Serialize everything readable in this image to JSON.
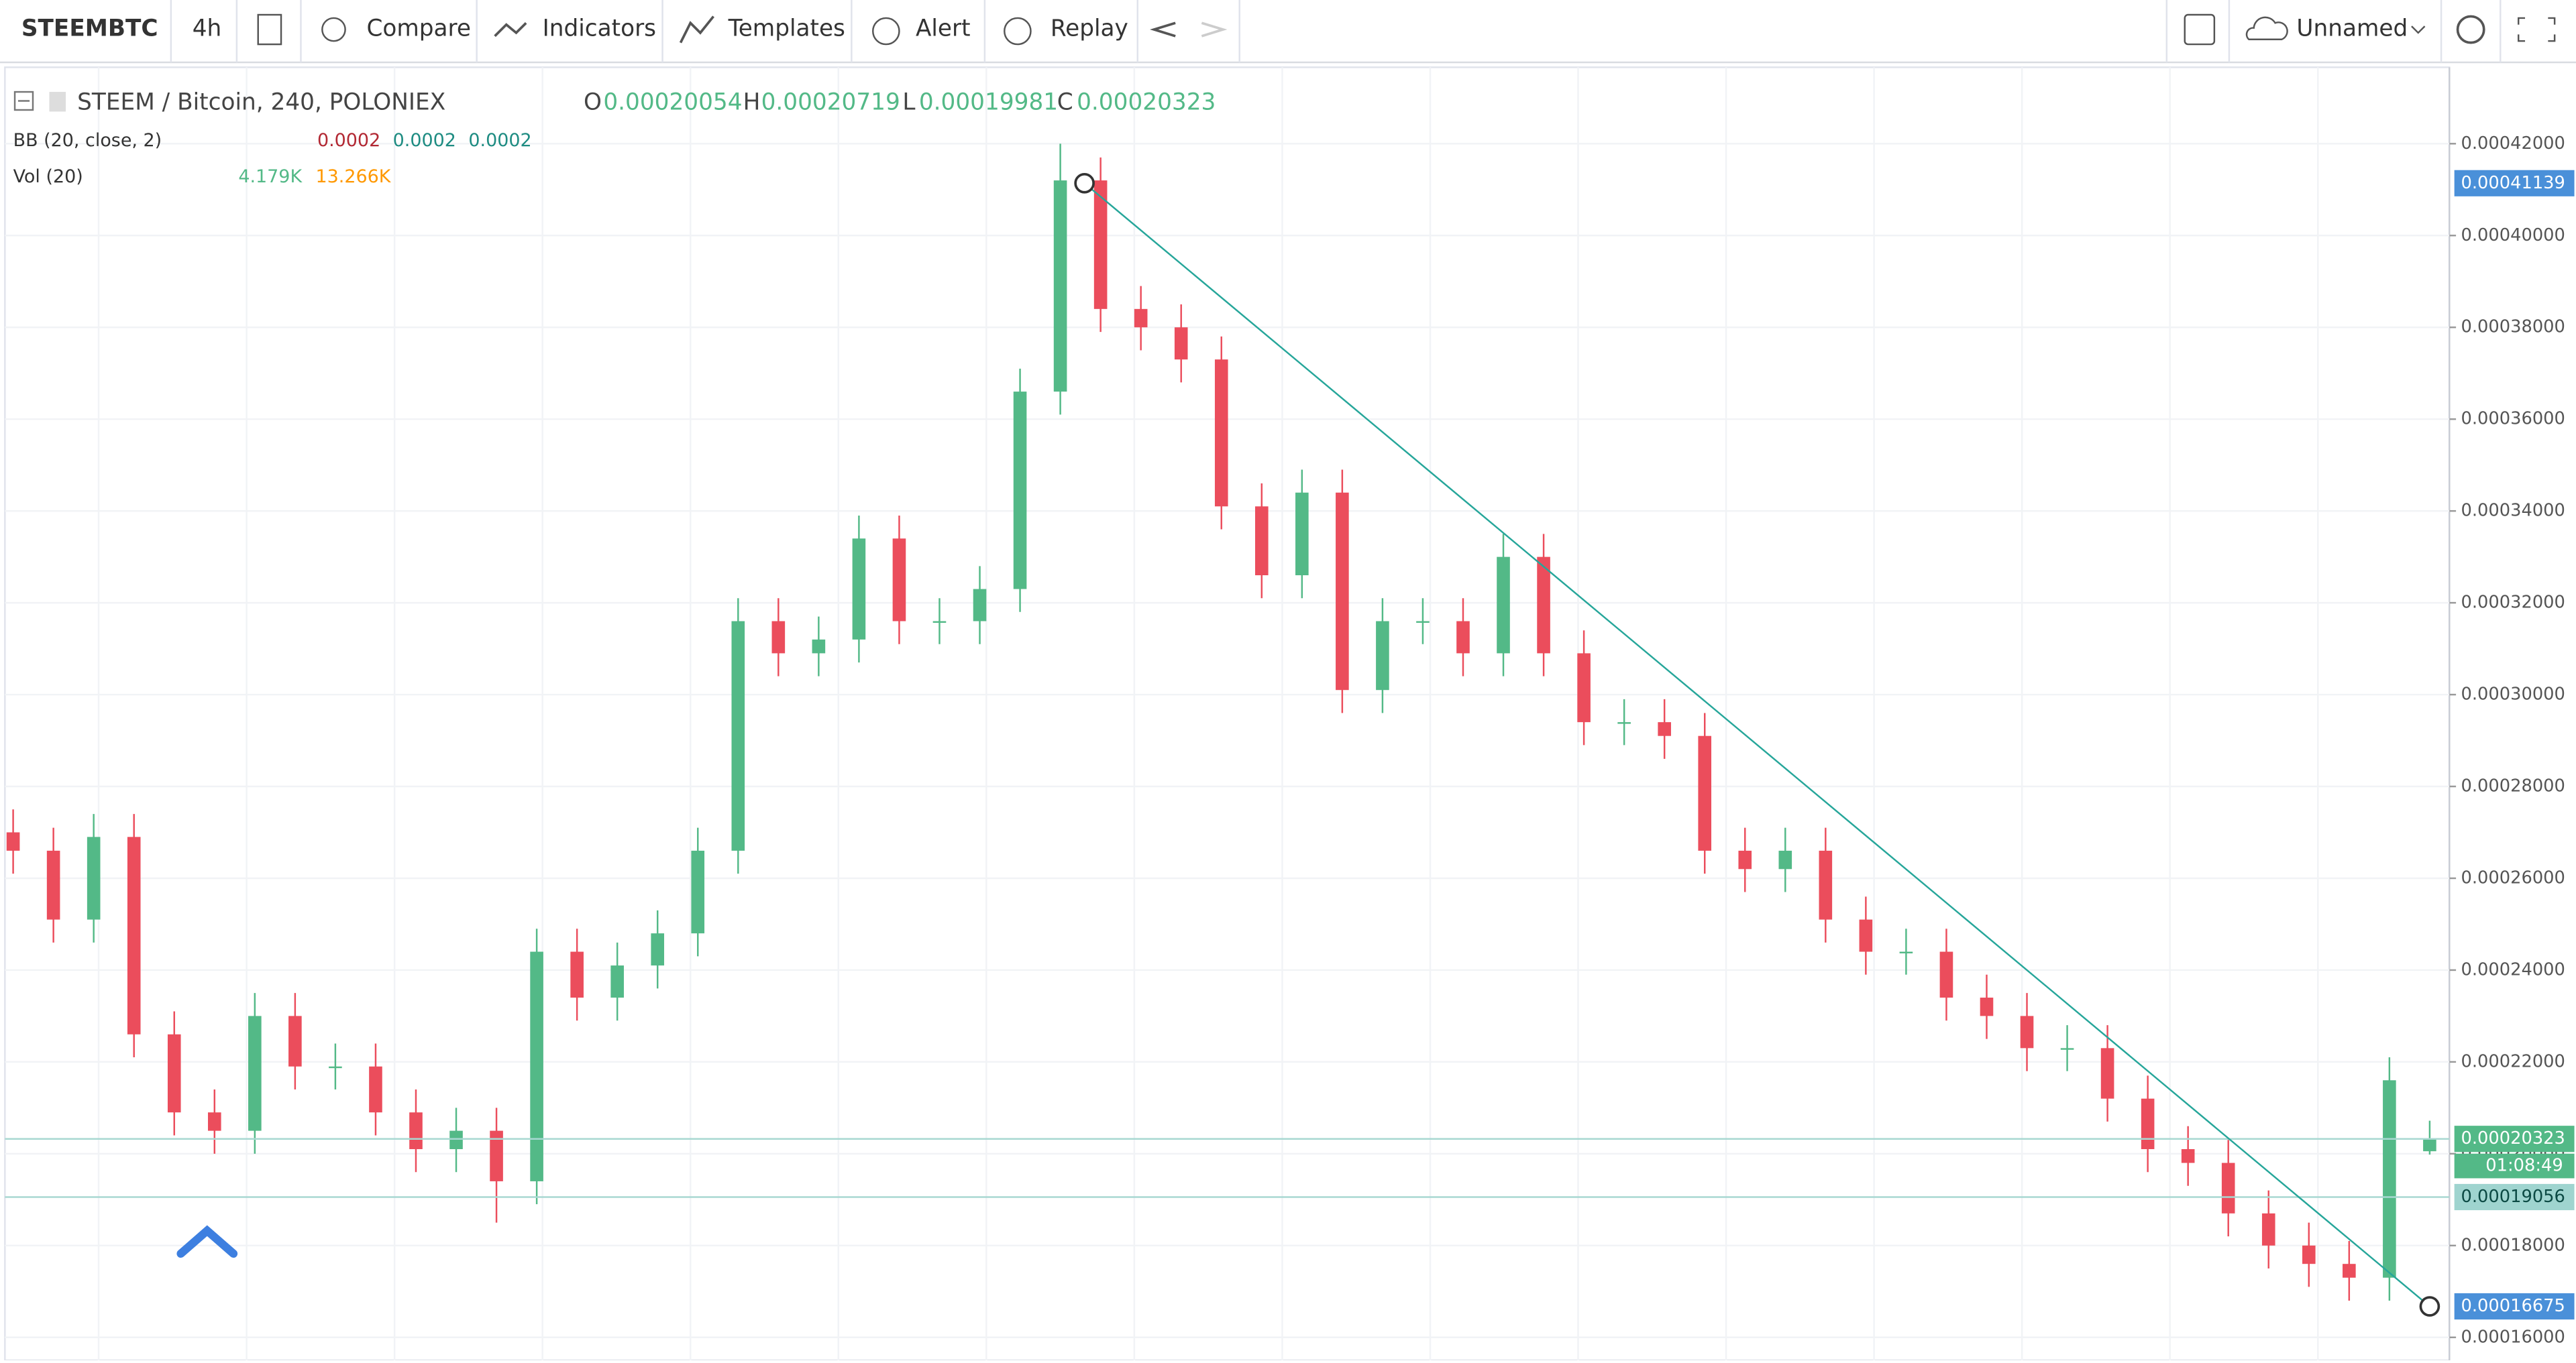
{
  "toolbar": {
    "symbol": "STEEMBTC",
    "interval": "4h",
    "compare": "Compare",
    "indicators": "Indicators",
    "templates": "Templates",
    "alert": "Alert",
    "replay": "Replay",
    "layout": "Unnamed"
  },
  "legend": {
    "title": "STEEM / Bitcoin, 240, POLONIEX",
    "o_label": "O",
    "o": 0.00020054,
    "h_label": "H",
    "h": 0.00020719,
    "l_label": "L",
    "l": 0.00019981,
    "c_label": "C",
    "c": 0.00020323,
    "bb_label": "BB (20, close, 2)",
    "bb_values": [
      0.0002,
      0.0002,
      0.0002
    ],
    "vol_label": "Vol (20)",
    "vol_values": [
      "4.179K",
      "13.266K"
    ]
  },
  "chart_data": {
    "type": "candlestick",
    "open": [
      0.00027,
      0.000266,
      0.000251,
      0.000269,
      0.000226,
      0.000209,
      0.000205,
      0.00023,
      0.000219,
      0.000219,
      0.000209,
      0.000201,
      0.000205,
      0.000194,
      0.000244,
      0.000234,
      0.000241,
      0.000248,
      0.000266,
      0.000316,
      0.000309,
      0.000312,
      0.000334,
      0.000316,
      0.000316,
      0.000323,
      0.000366,
      0.000412,
      0.000384,
      0.00038,
      0.000373,
      0.000341,
      0.000326,
      0.000344,
      0.000301,
      0.000316,
      0.000316,
      0.000309,
      0.00033,
      0.000309,
      0.000294,
      0.000294,
      0.000291,
      0.000266,
      0.000262,
      0.000266,
      0.000251,
      0.000244,
      0.000244,
      0.000234,
      0.00023,
      0.000223,
      0.000223,
      0.000212,
      0.000201,
      0.000198,
      0.000187,
      0.00018,
      0.000176,
      0.000173,
      0.00020054
    ],
    "high": [
      0.000275,
      0.000271,
      0.000274,
      0.000274,
      0.000231,
      0.000214,
      0.000235,
      0.000235,
      0.000224,
      0.000224,
      0.000214,
      0.00021,
      0.00021,
      0.000249,
      0.000249,
      0.000246,
      0.000253,
      0.000271,
      0.000321,
      0.000321,
      0.000317,
      0.000339,
      0.000339,
      0.000321,
      0.000328,
      0.000371,
      0.00042,
      0.000417,
      0.000389,
      0.000385,
      0.000378,
      0.000346,
      0.000349,
      0.000349,
      0.000321,
      0.000321,
      0.000321,
      0.000335,
      0.000335,
      0.000314,
      0.000299,
      0.000299,
      0.000296,
      0.000271,
      0.000271,
      0.000271,
      0.000256,
      0.000249,
      0.000249,
      0.000239,
      0.000235,
      0.000228,
      0.000228,
      0.000217,
      0.000206,
      0.000203,
      0.000192,
      0.000185,
      0.000181,
      0.000221,
      0.00020719
    ],
    "low": [
      0.000261,
      0.000246,
      0.000246,
      0.000221,
      0.000204,
      0.0002,
      0.0002,
      0.000214,
      0.000214,
      0.000204,
      0.000196,
      0.000196,
      0.000185,
      0.000189,
      0.000229,
      0.000229,
      0.000236,
      0.000243,
      0.000261,
      0.000304,
      0.000304,
      0.000307,
      0.000311,
      0.000311,
      0.000311,
      0.000318,
      0.000361,
      0.000379,
      0.000375,
      0.000368,
      0.000336,
      0.000321,
      0.000321,
      0.000296,
      0.000296,
      0.000311,
      0.000304,
      0.000304,
      0.000304,
      0.000289,
      0.000289,
      0.000286,
      0.000261,
      0.000257,
      0.000257,
      0.000246,
      0.000239,
      0.000239,
      0.000229,
      0.000225,
      0.000218,
      0.000218,
      0.000207,
      0.000196,
      0.000193,
      0.000182,
      0.000175,
      0.000171,
      0.000168,
      0.000168,
      0.00019981
    ],
    "close": [
      0.000266,
      0.000251,
      0.000269,
      0.000226,
      0.000209,
      0.000205,
      0.00023,
      0.000219,
      0.000219,
      0.000209,
      0.000201,
      0.000205,
      0.000194,
      0.000244,
      0.000234,
      0.000241,
      0.000248,
      0.000266,
      0.000316,
      0.000309,
      0.000312,
      0.000334,
      0.000316,
      0.000316,
      0.000323,
      0.000366,
      0.000412,
      0.000384,
      0.00038,
      0.000373,
      0.000341,
      0.000326,
      0.000344,
      0.000301,
      0.000316,
      0.000316,
      0.000309,
      0.00033,
      0.000309,
      0.000294,
      0.000294,
      0.000291,
      0.000266,
      0.000262,
      0.000266,
      0.000251,
      0.000244,
      0.000244,
      0.000234,
      0.00023,
      0.000223,
      0.000223,
      0.000212,
      0.000201,
      0.000198,
      0.000187,
      0.00018,
      0.000176,
      0.000173,
      0.000216,
      0.00020323
    ],
    "up_color": "#53b987",
    "down_color": "#eb4d5c",
    "ylim": [
      0.000155,
      0.000437
    ],
    "yticks": [
      {
        "value": 0.00016,
        "label": "0.00016000"
      },
      {
        "value": 0.00018,
        "label": "0.00018000"
      },
      {
        "value": 0.0002,
        "label": "0.00020000"
      },
      {
        "value": 0.00022,
        "label": "0.00022000"
      },
      {
        "value": 0.00024,
        "label": "0.00024000"
      },
      {
        "value": 0.00026,
        "label": "0.00026000"
      },
      {
        "value": 0.00028,
        "label": "0.00028000"
      },
      {
        "value": 0.0003,
        "label": "0.00030000"
      },
      {
        "value": 0.00032,
        "label": "0.00032000"
      },
      {
        "value": 0.00034,
        "label": "0.00034000"
      },
      {
        "value": 0.00036,
        "label": "0.00036000"
      },
      {
        "value": 0.00038,
        "label": "0.00038000"
      },
      {
        "value": 0.0004,
        "label": "0.00040000"
      },
      {
        "value": 0.00042,
        "label": "0.00042000"
      }
    ],
    "grid": true,
    "price_labels": [
      {
        "value": 0.00041139,
        "label": "0.00041139",
        "color": "#4a90d9"
      },
      {
        "value": 0.00020323,
        "label": "0.00020323",
        "color": "#53b987"
      },
      {
        "value": 0.00019056,
        "label": "0.00019056",
        "color": "#9fd4cf"
      },
      {
        "value": 0.00016675,
        "label": "0.00016675",
        "color": "#4a90d9"
      }
    ],
    "countdown": "01:08:49"
  }
}
